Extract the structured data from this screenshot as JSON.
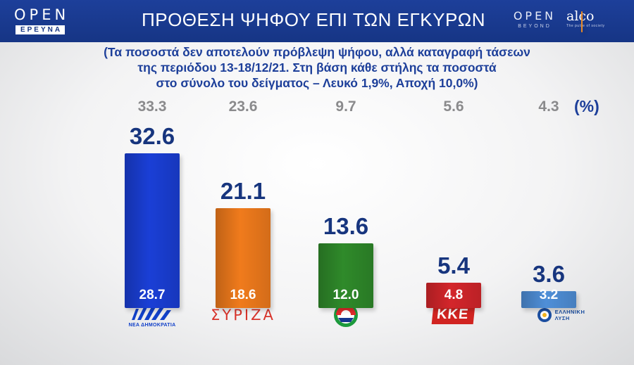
{
  "header": {
    "title": "ΠΡΟΘΕΣΗ ΨΗΦΟΥ ΕΠΙ ΤΩΝ ΕΓΚΥΡΩΝ",
    "logo_open": "OPEN",
    "logo_open_sub": "ΕΡΕΥΝΑ",
    "logo_beyond": "OPEN",
    "logo_beyond_sub": "BEYOND",
    "logo_alco": "alco",
    "logo_alco_sub": "The pulse of society"
  },
  "note": {
    "line1": "(Τα ποσοστά δεν αποτελούν πρόβλεψη ψήφου, αλλά καταγραφή τάσεων",
    "line2": "της περιόδου 13-18/12/21.  Στη βάση κάθε στήλης τα ποσοστά",
    "line3": "στο σύνολο του δείγματος – Λευκό 1,9%, Αποχή 10,0%)"
  },
  "chart_data": {
    "type": "bar",
    "title": "ΠΡΟΘΕΣΗ ΨΗΦΟΥ ΕΠΙ ΤΩΝ ΕΓΚΥΡΩΝ",
    "unit": "(%)",
    "categories": [
      "ΝΔ",
      "ΣΥΡΙΖΑ",
      "ΠΑΣΟΚ",
      "ΚΚΕ",
      "ΕΛΛΗΝΙΚΗ ΛΥΣΗ"
    ],
    "series": [
      {
        "values": [
          32.6,
          21.1,
          13.6,
          5.4,
          3.6
        ]
      },
      {
        "values": [
          28.7,
          18.6,
          12.0,
          4.8,
          3.2
        ]
      },
      {
        "values": [
          33.3,
          23.6,
          9.7,
          5.6,
          4.3
        ]
      }
    ],
    "ylim": [
      0,
      35
    ],
    "colors": [
      "#1a3fd6",
      "#f07b1c",
      "#2f8a2a",
      "#d4262b",
      "#4f8fd8"
    ],
    "grid": false,
    "legend": "none"
  },
  "party_labels": {
    "nd_mark": "ΝΔ",
    "nd_text": "ΝΕΑ ΔΗΜΟΚΡΑΤΙΑ",
    "syriza": "ΣΥΡΙΖΑ",
    "kke": "ΚΚΕ",
    "el_line1": "ΕΛΛΗΝΙΚΗ",
    "el_line2": "ΛΥΣΗ"
  }
}
